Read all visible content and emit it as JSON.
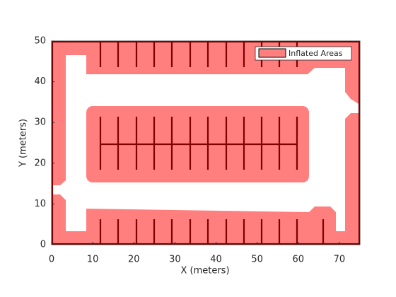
{
  "chart_data": {
    "type": "map",
    "xlabel": "X (meters)",
    "ylabel": "Y (meters)",
    "xlim": [
      0,
      75
    ],
    "ylim": [
      0,
      50
    ],
    "xticks": [
      0,
      10,
      20,
      30,
      40,
      50,
      60,
      70
    ],
    "yticks": [
      0,
      10,
      20,
      30,
      40,
      50
    ],
    "layers": [
      {
        "name": "Inflated Areas",
        "color": "#ff7f7f"
      }
    ],
    "obstacle_color": "#800000",
    "legend": "upper right"
  }
}
